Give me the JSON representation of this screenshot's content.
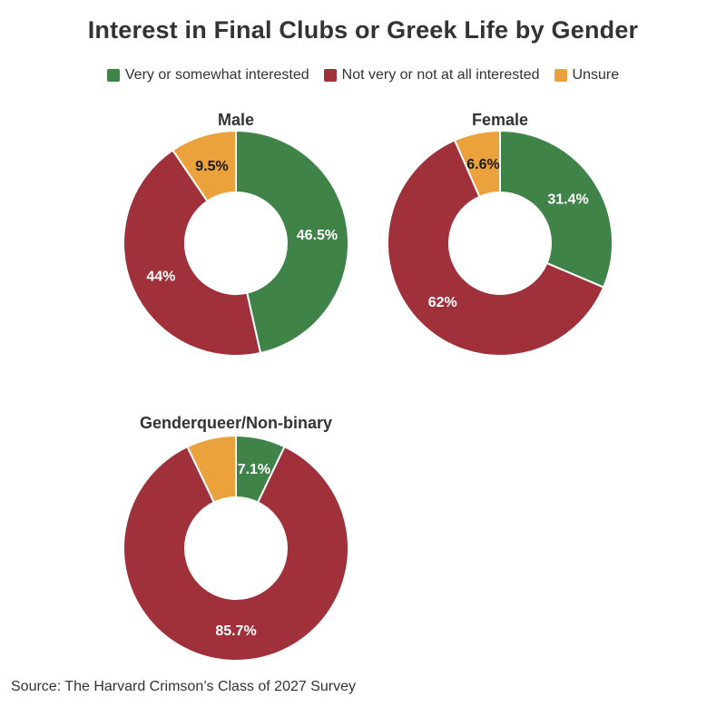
{
  "title": "Interest in Final Clubs or Greek Life by Gender",
  "legend": [
    {
      "label": "Very or somewhat interested",
      "color": "#3f8349"
    },
    {
      "label": "Not very or not at all interested",
      "color": "#a0313a"
    },
    {
      "label": "Unsure",
      "color": "#eca23c"
    }
  ],
  "source": "Source: The Harvard Crimson’s Class of 2027 Survey",
  "chart_data": [
    {
      "type": "pie",
      "title": "Male",
      "categories": [
        "Very or somewhat interested",
        "Not very or not at all interested",
        "Unsure"
      ],
      "values": [
        46.5,
        44,
        9.5
      ],
      "labels": [
        "46.5%",
        "44%",
        "9.5%"
      ],
      "colors": [
        "#3f8349",
        "#a0313a",
        "#eca23c"
      ],
      "label_colors": [
        "#ffffff",
        "#ffffff",
        "#1a1a1a"
      ]
    },
    {
      "type": "pie",
      "title": "Female",
      "categories": [
        "Very or somewhat interested",
        "Not very or not at all interested",
        "Unsure"
      ],
      "values": [
        31.4,
        62,
        6.6
      ],
      "labels": [
        "31.4%",
        "62%",
        "6.6%"
      ],
      "colors": [
        "#3f8349",
        "#a0313a",
        "#eca23c"
      ],
      "label_colors": [
        "#ffffff",
        "#ffffff",
        "#1a1a1a"
      ]
    },
    {
      "type": "pie",
      "title": "Genderqueer/Non-binary",
      "categories": [
        "Very or somewhat interested",
        "Not very or not at all interested",
        "Unsure"
      ],
      "values": [
        7.1,
        85.7,
        7.1
      ],
      "labels": [
        "7.1%",
        "85.7%",
        ""
      ],
      "colors": [
        "#3f8349",
        "#a0313a",
        "#eca23c"
      ],
      "label_colors": [
        "#ffffff",
        "#ffffff",
        "#1a1a1a"
      ]
    }
  ]
}
